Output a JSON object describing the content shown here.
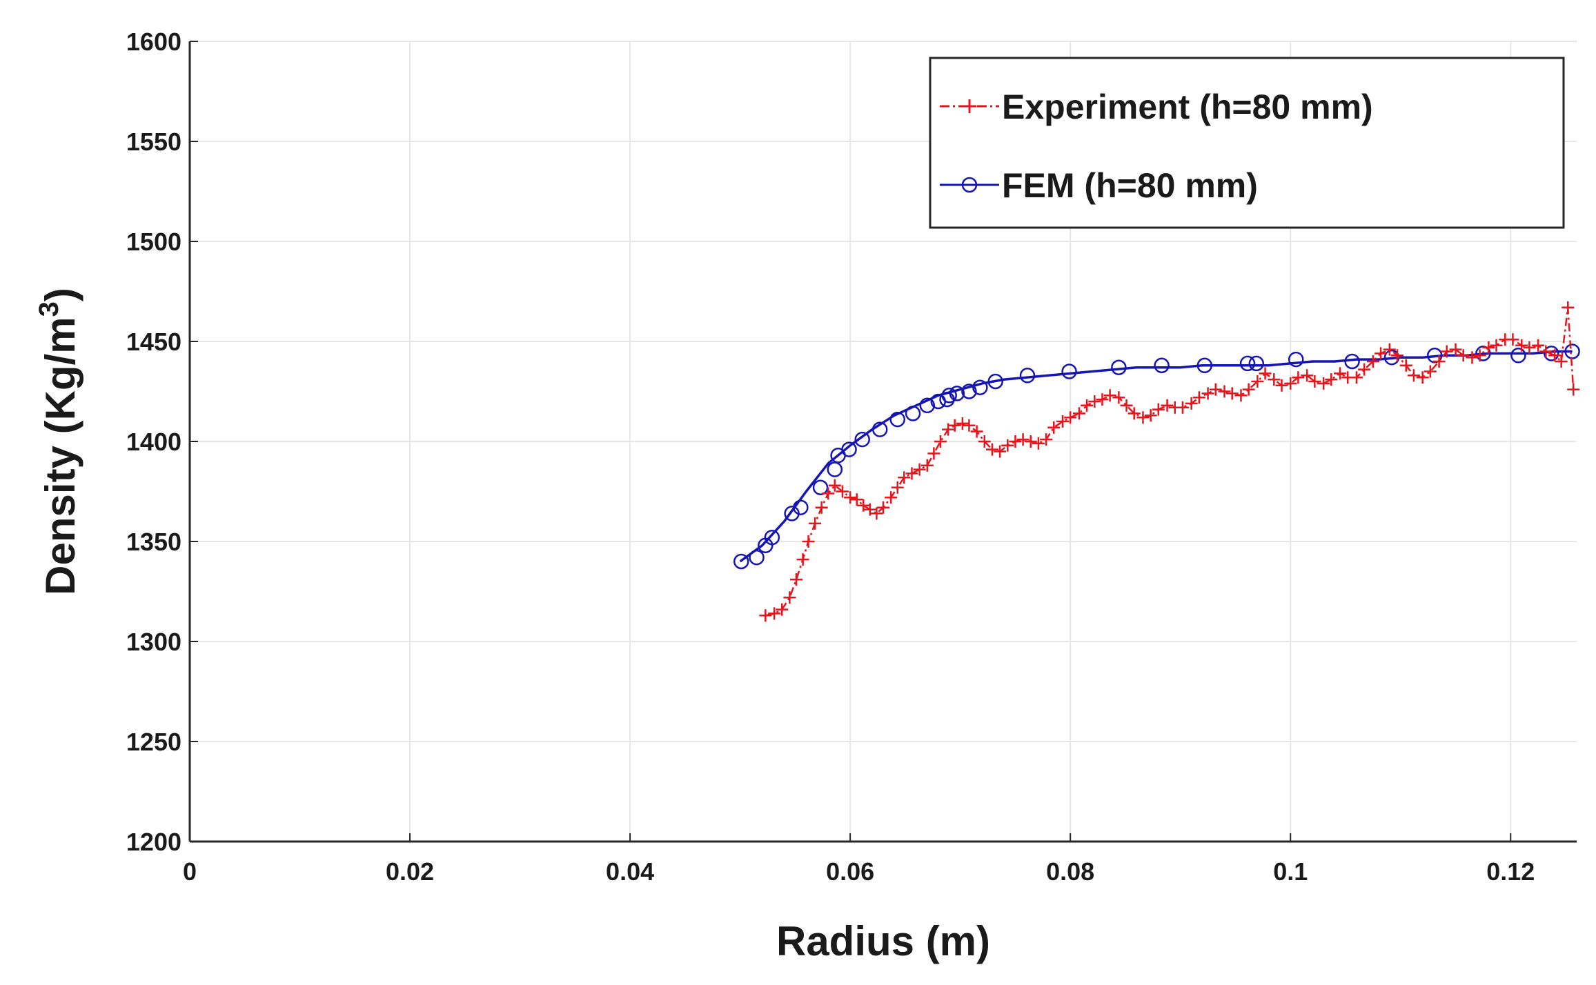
{
  "chart_data": {
    "type": "line",
    "title": "",
    "xlabel": "Radius (m)",
    "ylabel_main": "Density (Kg/m",
    "ylabel_sup": "3",
    "ylabel_close": ")",
    "xlim": [
      0,
      0.126
    ],
    "ylim": [
      1200,
      1600
    ],
    "xticks": [
      0,
      0.02,
      0.04,
      0.06,
      0.08,
      0.1,
      0.12
    ],
    "xtick_labels": [
      "0",
      "0.02",
      "0.04",
      "0.06",
      "0.08",
      "0.1",
      "0.12"
    ],
    "yticks": [
      1200,
      1250,
      1300,
      1350,
      1400,
      1450,
      1500,
      1550,
      1600
    ],
    "ytick_labels": [
      "1200",
      "1250",
      "1300",
      "1350",
      "1400",
      "1450",
      "1500",
      "1550",
      "1600"
    ],
    "grid": true,
    "legend_position": "top-right",
    "series": [
      {
        "name": "Experiment (h=80 mm)",
        "color": "#e8141c",
        "line_style": "dash-dot",
        "marker": "plus",
        "x": [
          0.0523,
          0.0531,
          0.0538,
          0.0545,
          0.0551,
          0.0557,
          0.0562,
          0.0568,
          0.0574,
          0.058,
          0.0586,
          0.0593,
          0.06,
          0.0606,
          0.0612,
          0.0618,
          0.0624,
          0.063,
          0.0637,
          0.0643,
          0.0649,
          0.0656,
          0.0663,
          0.067,
          0.0676,
          0.0682,
          0.0689,
          0.0695,
          0.0702,
          0.0708,
          0.0715,
          0.0722,
          0.0729,
          0.0736,
          0.0743,
          0.075,
          0.0757,
          0.0764,
          0.0771,
          0.0778,
          0.0785,
          0.0793,
          0.08,
          0.0808,
          0.0815,
          0.0822,
          0.0829,
          0.0836,
          0.0844,
          0.0851,
          0.0858,
          0.0866,
          0.0873,
          0.088,
          0.0888,
          0.0895,
          0.0902,
          0.091,
          0.0917,
          0.0925,
          0.0932,
          0.094,
          0.0947,
          0.0955,
          0.0962,
          0.097,
          0.0977,
          0.0985,
          0.0992,
          0.1,
          0.1007,
          0.1015,
          0.1022,
          0.103,
          0.1037,
          0.1045,
          0.1052,
          0.106,
          0.1067,
          0.1075,
          0.1082,
          0.109,
          0.1097,
          0.1105,
          0.1112,
          0.112,
          0.1127,
          0.1135,
          0.1142,
          0.115,
          0.1157,
          0.1165,
          0.1172,
          0.118,
          0.1187,
          0.1195,
          0.1202,
          0.121,
          0.1217,
          0.1225,
          0.1232,
          0.124,
          0.1246,
          0.1252,
          0.1257
        ],
        "values": [
          1313,
          1314,
          1316,
          1322,
          1331,
          1341,
          1350,
          1359,
          1367,
          1374,
          1378,
          1375,
          1372,
          1371,
          1368,
          1366,
          1364,
          1367,
          1372,
          1377,
          1382,
          1384,
          1386,
          1388,
          1394,
          1400,
          1406,
          1408,
          1409,
          1408,
          1405,
          1400,
          1396,
          1395,
          1398,
          1400,
          1401,
          1400,
          1399,
          1401,
          1407,
          1410,
          1412,
          1414,
          1418,
          1420,
          1421,
          1423,
          1422,
          1418,
          1414,
          1412,
          1413,
          1416,
          1418,
          1417,
          1417,
          1419,
          1422,
          1424,
          1426,
          1425,
          1424,
          1423,
          1426,
          1430,
          1434,
          1431,
          1428,
          1429,
          1432,
          1433,
          1430,
          1429,
          1431,
          1434,
          1432,
          1432,
          1436,
          1440,
          1444,
          1446,
          1443,
          1438,
          1433,
          1432,
          1435,
          1440,
          1445,
          1446,
          1443,
          1442,
          1443,
          1447,
          1448,
          1451,
          1451,
          1448,
          1447,
          1448,
          1445,
          1443,
          1440,
          1467,
          1426
        ]
      },
      {
        "name": "FEM (h=80 mm)",
        "color": "#1515b4",
        "line_style": "solid",
        "marker": "circle",
        "line_x": [
          0.05,
          0.052,
          0.054,
          0.056,
          0.058,
          0.06,
          0.062,
          0.064,
          0.066,
          0.068,
          0.07,
          0.072,
          0.074,
          0.076,
          0.078,
          0.08,
          0.082,
          0.084,
          0.086,
          0.088,
          0.09,
          0.092,
          0.094,
          0.096,
          0.098,
          0.1,
          0.102,
          0.104,
          0.106,
          0.108,
          0.11,
          0.112,
          0.114,
          0.116,
          0.118,
          0.12,
          0.122,
          0.124,
          0.1256
        ],
        "line_values": [
          1340,
          1348,
          1360,
          1375,
          1389,
          1398,
          1406,
          1413,
          1418,
          1423,
          1426,
          1429,
          1431,
          1432,
          1433,
          1434,
          1435,
          1436,
          1437,
          1437,
          1437,
          1438,
          1438,
          1438,
          1438,
          1439,
          1440,
          1440,
          1441,
          1441,
          1442,
          1442,
          1443,
          1443,
          1444,
          1444,
          1444,
          1445,
          1445
        ],
        "marker_x": [
          0.0501,
          0.0515,
          0.0523,
          0.0529,
          0.0547,
          0.0555,
          0.0573,
          0.0586,
          0.0589,
          0.0599,
          0.0611,
          0.0627,
          0.0643,
          0.0657,
          0.067,
          0.068,
          0.0688,
          0.069,
          0.0697,
          0.0708,
          0.0718,
          0.0732,
          0.0761,
          0.0799,
          0.0844,
          0.0883,
          0.0922,
          0.0961,
          0.0969,
          0.1005,
          0.1056,
          0.1092,
          0.1131,
          0.1175,
          0.1207,
          0.1237,
          0.1256
        ],
        "marker_values": [
          1340,
          1342,
          1348,
          1352,
          1364,
          1367,
          1377,
          1386,
          1393,
          1396,
          1401,
          1406,
          1411,
          1414,
          1418,
          1420,
          1421,
          1423,
          1424,
          1425,
          1427,
          1430,
          1433,
          1435,
          1437,
          1438,
          1438,
          1439,
          1439,
          1441,
          1440,
          1442,
          1443,
          1444,
          1443,
          1444,
          1445
        ]
      }
    ]
  }
}
